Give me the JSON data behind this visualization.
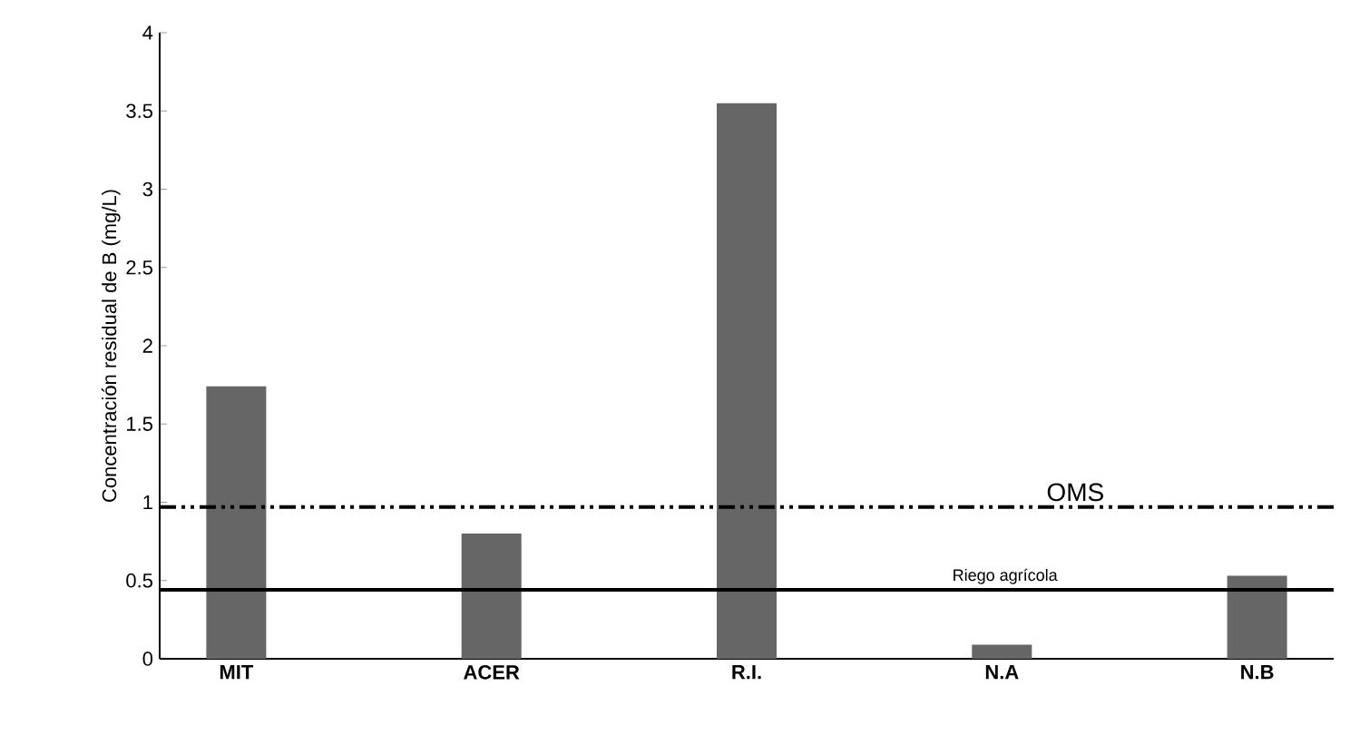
{
  "chart_data": {
    "type": "bar",
    "ylabel": "Concentración residual de B (mg/L)",
    "categories": [
      "MIT",
      "ACER",
      "R.I.",
      "N.A",
      "N.B"
    ],
    "values": [
      1.74,
      0.8,
      3.55,
      0.09,
      0.53
    ],
    "color": "#666666",
    "ylim": [
      0,
      4
    ],
    "yticks": [
      0,
      0.5,
      1,
      1.5,
      2,
      2.5,
      3,
      3.5,
      4
    ],
    "grid": false,
    "ref_lines": [
      {
        "axis": "y",
        "value": 0.97,
        "label": "OMS",
        "color": "#000000",
        "line_style": "dashdotdotted"
      },
      {
        "axis": "y",
        "value": 0.44,
        "label": "Riego agrícola",
        "color": "#000000",
        "line_style": "solid"
      }
    ]
  }
}
